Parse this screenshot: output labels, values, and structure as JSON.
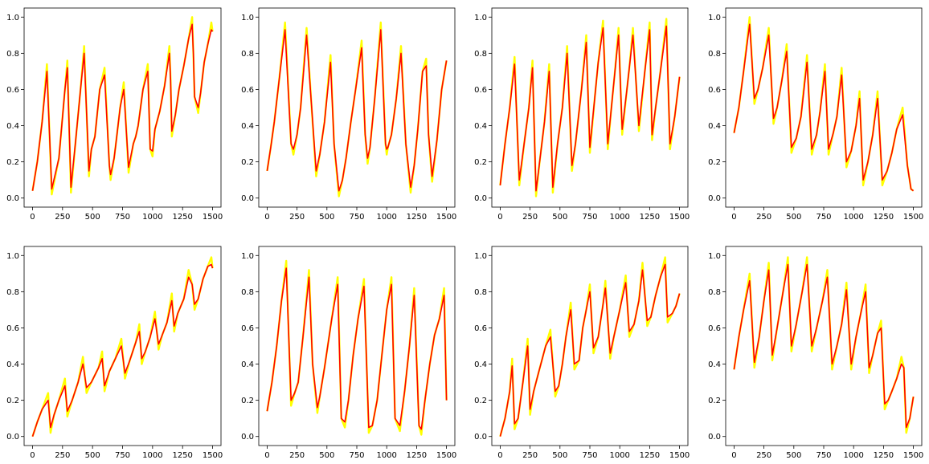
{
  "colors": {
    "series_raw": "#ffff00",
    "series_smooth": "#ff0000",
    "axes": "#000000",
    "background": "#ffffff"
  },
  "chart_data": [
    {
      "type": "line",
      "xlim": [
        -70,
        1570
      ],
      "ylim": [
        -0.05,
        1.05
      ],
      "xticks": [
        0,
        250,
        500,
        750,
        1000,
        1250,
        1500
      ],
      "yticks": [
        0.0,
        0.2,
        0.4,
        0.6,
        0.8,
        1.0
      ],
      "xticklabels": [
        "0",
        "250",
        "500",
        "750",
        "1000",
        "1250",
        "1500"
      ],
      "yticklabels": [
        "0.0",
        "0.2",
        "0.4",
        "0.6",
        "0.8",
        "1.0"
      ],
      "grid": false,
      "series": [
        {
          "x": [
            0,
            40,
            80,
            120,
            160,
            220,
            270,
            290,
            320,
            360,
            400,
            430,
            470,
            490,
            520,
            560,
            600,
            640,
            650,
            680,
            700,
            730,
            760,
            800,
            840,
            860,
            880,
            920,
            960,
            980,
            1000,
            1020,
            1060,
            1100,
            1140,
            1150,
            1160,
            1190,
            1220,
            1260,
            1300,
            1330,
            1340,
            1350,
            1380,
            1400,
            1430,
            1460,
            1490,
            1500
          ],
          "y": [
            0.04,
            0.2,
            0.42,
            0.7,
            0.05,
            0.22,
            0.6,
            0.72,
            0.06,
            0.32,
            0.6,
            0.8,
            0.15,
            0.27,
            0.34,
            0.6,
            0.68,
            0.18,
            0.13,
            0.22,
            0.33,
            0.5,
            0.6,
            0.17,
            0.3,
            0.34,
            0.4,
            0.6,
            0.7,
            0.27,
            0.26,
            0.38,
            0.48,
            0.62,
            0.8,
            0.65,
            0.37,
            0.46,
            0.6,
            0.73,
            0.88,
            0.96,
            0.8,
            0.56,
            0.5,
            0.58,
            0.75,
            0.85,
            0.93,
            0.92
          ]
        }
      ]
    },
    {
      "type": "line",
      "xlim": [
        -70,
        1570
      ],
      "ylim": [
        -0.05,
        1.05
      ],
      "xticks": [
        0,
        250,
        500,
        750,
        1000,
        1250,
        1500
      ],
      "yticks": [
        0.0,
        0.2,
        0.4,
        0.6,
        0.8,
        1.0
      ],
      "xticklabels": [
        "0",
        "250",
        "500",
        "750",
        "1000",
        "1250",
        "1500"
      ],
      "yticklabels": [
        "0.0",
        "0.2",
        "0.4",
        "0.6",
        "0.8",
        "1.0"
      ],
      "grid": false,
      "series": [
        {
          "x": [
            0,
            30,
            60,
            100,
            150,
            200,
            220,
            250,
            280,
            330,
            370,
            410,
            440,
            480,
            530,
            560,
            600,
            630,
            660,
            700,
            740,
            790,
            820,
            840,
            860,
            900,
            950,
            990,
            1000,
            1010,
            1040,
            1080,
            1120,
            1160,
            1200,
            1230,
            1260,
            1300,
            1330,
            1350,
            1380,
            1420,
            1460,
            1500
          ],
          "y": [
            0.15,
            0.28,
            0.42,
            0.65,
            0.93,
            0.3,
            0.27,
            0.35,
            0.5,
            0.9,
            0.52,
            0.15,
            0.24,
            0.42,
            0.75,
            0.3,
            0.04,
            0.1,
            0.22,
            0.42,
            0.6,
            0.83,
            0.35,
            0.22,
            0.28,
            0.55,
            0.93,
            0.3,
            0.27,
            0.28,
            0.35,
            0.55,
            0.8,
            0.3,
            0.06,
            0.18,
            0.38,
            0.7,
            0.73,
            0.35,
            0.12,
            0.32,
            0.6,
            0.76
          ]
        }
      ]
    },
    {
      "type": "line",
      "xlim": [
        -70,
        1570
      ],
      "ylim": [
        -0.05,
        1.05
      ],
      "xticks": [
        0,
        250,
        500,
        750,
        1000,
        1250,
        1500
      ],
      "yticks": [
        0.0,
        0.2,
        0.4,
        0.6,
        0.8,
        1.0
      ],
      "xticklabels": [
        "0",
        "250",
        "500",
        "750",
        "1000",
        "1250",
        "1500"
      ],
      "yticklabels": [
        "0.0",
        "0.2",
        "0.4",
        "0.6",
        "0.8",
        "1.0"
      ],
      "grid": false,
      "series": [
        {
          "x": [
            0,
            40,
            80,
            120,
            160,
            200,
            240,
            270,
            300,
            330,
            370,
            410,
            440,
            480,
            520,
            560,
            600,
            630,
            680,
            720,
            750,
            790,
            820,
            860,
            900,
            930,
            960,
            990,
            1020,
            1060,
            1080,
            1110,
            1160,
            1210,
            1250,
            1270,
            1300,
            1340,
            1390,
            1420,
            1460,
            1500
          ],
          "y": [
            0.07,
            0.3,
            0.5,
            0.74,
            0.1,
            0.3,
            0.5,
            0.72,
            0.04,
            0.2,
            0.42,
            0.7,
            0.06,
            0.3,
            0.5,
            0.8,
            0.18,
            0.3,
            0.6,
            0.86,
            0.28,
            0.55,
            0.75,
            0.94,
            0.3,
            0.5,
            0.7,
            0.9,
            0.38,
            0.6,
            0.72,
            0.9,
            0.4,
            0.7,
            0.93,
            0.35,
            0.5,
            0.7,
            0.95,
            0.3,
            0.45,
            0.67
          ]
        }
      ]
    },
    {
      "type": "line",
      "xlim": [
        -70,
        1570
      ],
      "ylim": [
        -0.05,
        1.05
      ],
      "xticks": [
        0,
        250,
        500,
        750,
        1000,
        1250,
        1500
      ],
      "yticks": [
        0.0,
        0.2,
        0.4,
        0.6,
        0.8,
        1.0
      ],
      "xticklabels": [
        "0",
        "250",
        "500",
        "750",
        "1000",
        "1250",
        "1500"
      ],
      "yticklabels": [
        "0.0",
        "0.2",
        "0.4",
        "0.6",
        "0.8",
        "1.0"
      ],
      "grid": false,
      "series": [
        {
          "x": [
            0,
            40,
            80,
            130,
            170,
            200,
            240,
            290,
            330,
            360,
            400,
            440,
            480,
            520,
            560,
            610,
            650,
            690,
            720,
            760,
            790,
            830,
            860,
            900,
            940,
            980,
            1020,
            1050,
            1080,
            1120,
            1160,
            1200,
            1240,
            1280,
            1320,
            1360,
            1410,
            1450,
            1480,
            1500
          ],
          "y": [
            0.36,
            0.5,
            0.7,
            0.96,
            0.55,
            0.6,
            0.72,
            0.9,
            0.44,
            0.5,
            0.65,
            0.81,
            0.28,
            0.33,
            0.45,
            0.75,
            0.27,
            0.35,
            0.48,
            0.7,
            0.27,
            0.36,
            0.45,
            0.68,
            0.2,
            0.26,
            0.4,
            0.55,
            0.1,
            0.2,
            0.35,
            0.55,
            0.1,
            0.15,
            0.25,
            0.38,
            0.46,
            0.18,
            0.05,
            0.04
          ]
        }
      ]
    },
    {
      "type": "line",
      "xlim": [
        -70,
        1570
      ],
      "ylim": [
        -0.05,
        1.05
      ],
      "xticks": [
        0,
        250,
        500,
        750,
        1000,
        1250,
        1500
      ],
      "yticks": [
        0.0,
        0.2,
        0.4,
        0.6,
        0.8,
        1.0
      ],
      "xticklabels": [
        "0",
        "250",
        "500",
        "750",
        "1000",
        "1250",
        "1500"
      ],
      "yticklabels": [
        "0.0",
        "0.2",
        "0.4",
        "0.6",
        "0.8",
        "1.0"
      ],
      "grid": false,
      "series": [
        {
          "x": [
            0,
            40,
            80,
            130,
            150,
            180,
            220,
            270,
            290,
            330,
            380,
            420,
            450,
            490,
            550,
            580,
            600,
            640,
            690,
            740,
            770,
            810,
            860,
            890,
            910,
            940,
            980,
            1020,
            1050,
            1080,
            1120,
            1160,
            1180,
            1210,
            1260,
            1300,
            1330,
            1350,
            1380,
            1420,
            1460,
            1490,
            1500
          ],
          "y": [
            0.0,
            0.08,
            0.15,
            0.2,
            0.05,
            0.12,
            0.2,
            0.28,
            0.14,
            0.2,
            0.3,
            0.4,
            0.27,
            0.3,
            0.38,
            0.43,
            0.28,
            0.36,
            0.43,
            0.5,
            0.35,
            0.42,
            0.52,
            0.58,
            0.43,
            0.47,
            0.55,
            0.65,
            0.51,
            0.56,
            0.63,
            0.75,
            0.61,
            0.68,
            0.76,
            0.88,
            0.84,
            0.73,
            0.76,
            0.87,
            0.94,
            0.95,
            0.93
          ]
        }
      ]
    },
    {
      "type": "line",
      "xlim": [
        -70,
        1570
      ],
      "ylim": [
        -0.05,
        1.05
      ],
      "xticks": [
        0,
        250,
        500,
        750,
        1000,
        1250,
        1500
      ],
      "yticks": [
        0.0,
        0.2,
        0.4,
        0.6,
        0.8,
        1.0
      ],
      "xticklabels": [
        "0",
        "250",
        "500",
        "750",
        "1000",
        "1250",
        "1500"
      ],
      "yticklabels": [
        "0.0",
        "0.2",
        "0.4",
        "0.6",
        "0.8",
        "1.0"
      ],
      "grid": false,
      "series": [
        {
          "x": [
            0,
            40,
            80,
            120,
            160,
            200,
            230,
            260,
            300,
            350,
            380,
            420,
            440,
            480,
            540,
            590,
            620,
            650,
            680,
            720,
            760,
            810,
            850,
            880,
            920,
            960,
            1000,
            1040,
            1070,
            1110,
            1150,
            1190,
            1230,
            1270,
            1290,
            1320,
            1360,
            1400,
            1440,
            1480,
            1500
          ],
          "y": [
            0.14,
            0.3,
            0.5,
            0.75,
            0.93,
            0.2,
            0.24,
            0.3,
            0.55,
            0.88,
            0.4,
            0.16,
            0.22,
            0.38,
            0.65,
            0.84,
            0.1,
            0.08,
            0.2,
            0.45,
            0.65,
            0.83,
            0.05,
            0.06,
            0.2,
            0.45,
            0.7,
            0.84,
            0.1,
            0.06,
            0.25,
            0.5,
            0.78,
            0.06,
            0.04,
            0.2,
            0.4,
            0.56,
            0.65,
            0.78,
            0.2
          ]
        }
      ]
    },
    {
      "type": "line",
      "xlim": [
        -70,
        1570
      ],
      "ylim": [
        -0.05,
        1.05
      ],
      "xticks": [
        0,
        250,
        500,
        750,
        1000,
        1250,
        1500
      ],
      "yticks": [
        0.0,
        0.2,
        0.4,
        0.6,
        0.8,
        1.0
      ],
      "xticklabels": [
        "0",
        "250",
        "500",
        "750",
        "1000",
        "1250",
        "1500"
      ],
      "yticklabels": [
        "0.0",
        "0.2",
        "0.4",
        "0.6",
        "0.8",
        "1.0"
      ],
      "grid": false,
      "series": [
        {
          "x": [
            0,
            40,
            80,
            100,
            120,
            150,
            190,
            230,
            250,
            280,
            320,
            380,
            420,
            460,
            490,
            520,
            550,
            590,
            620,
            660,
            690,
            720,
            750,
            780,
            820,
            860,
            880,
            920,
            950,
            1000,
            1050,
            1080,
            1120,
            1160,
            1190,
            1230,
            1260,
            1300,
            1340,
            1380,
            1400,
            1440,
            1470,
            1500
          ],
          "y": [
            0.0,
            0.1,
            0.25,
            0.39,
            0.07,
            0.1,
            0.3,
            0.5,
            0.15,
            0.25,
            0.35,
            0.5,
            0.55,
            0.25,
            0.28,
            0.4,
            0.55,
            0.7,
            0.4,
            0.42,
            0.6,
            0.7,
            0.8,
            0.49,
            0.55,
            0.73,
            0.82,
            0.46,
            0.55,
            0.7,
            0.85,
            0.58,
            0.62,
            0.75,
            0.92,
            0.64,
            0.66,
            0.78,
            0.88,
            0.95,
            0.66,
            0.68,
            0.72,
            0.79
          ]
        }
      ]
    },
    {
      "type": "line",
      "xlim": [
        -70,
        1570
      ],
      "ylim": [
        -0.05,
        1.05
      ],
      "xticks": [
        0,
        250,
        500,
        750,
        1000,
        1250,
        1500
      ],
      "yticks": [
        0.0,
        0.2,
        0.4,
        0.6,
        0.8,
        1.0
      ],
      "xticklabels": [
        "0",
        "250",
        "500",
        "750",
        "1000",
        "1250",
        "1500"
      ],
      "yticklabels": [
        "0.0",
        "0.2",
        "0.4",
        "0.6",
        "0.8",
        "1.0"
      ],
      "grid": false,
      "series": [
        {
          "x": [
            0,
            40,
            80,
            130,
            170,
            210,
            250,
            290,
            320,
            360,
            410,
            450,
            480,
            520,
            570,
            610,
            650,
            690,
            740,
            780,
            820,
            860,
            900,
            940,
            980,
            1020,
            1060,
            1100,
            1130,
            1160,
            1200,
            1230,
            1260,
            1290,
            1320,
            1360,
            1400,
            1420,
            1440,
            1470,
            1500
          ],
          "y": [
            0.37,
            0.55,
            0.7,
            0.86,
            0.41,
            0.55,
            0.75,
            0.92,
            0.45,
            0.6,
            0.8,
            0.95,
            0.5,
            0.62,
            0.8,
            0.95,
            0.5,
            0.6,
            0.75,
            0.88,
            0.4,
            0.5,
            0.62,
            0.81,
            0.4,
            0.55,
            0.68,
            0.8,
            0.38,
            0.45,
            0.57,
            0.6,
            0.18,
            0.2,
            0.25,
            0.32,
            0.4,
            0.38,
            0.05,
            0.1,
            0.22
          ]
        }
      ]
    }
  ]
}
